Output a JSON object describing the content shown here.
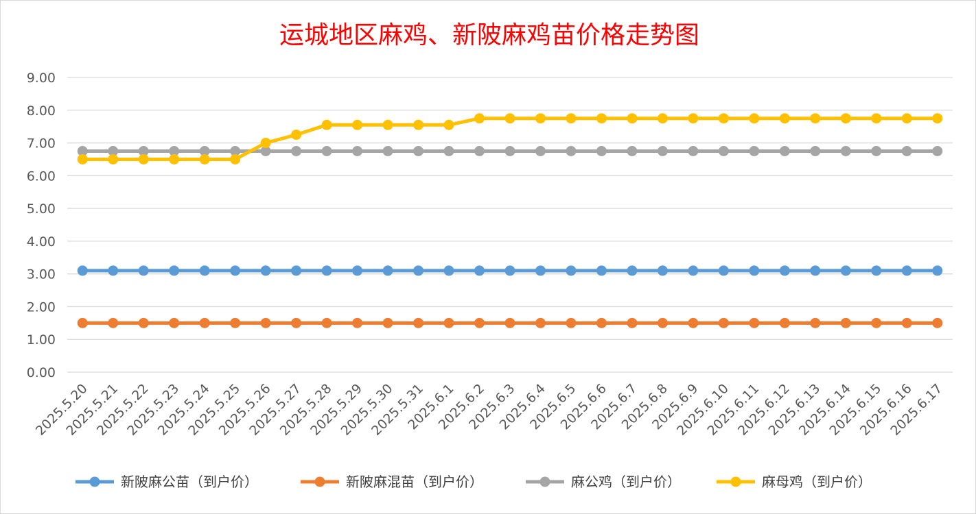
{
  "chart_data": {
    "type": "line",
    "title": "运城地区麻鸡、新陂麻鸡苗价格走势图",
    "xlabel": "",
    "ylabel": "",
    "ylim": [
      0,
      9
    ],
    "yticks": [
      "0.00",
      "1.00",
      "2.00",
      "3.00",
      "4.00",
      "5.00",
      "6.00",
      "7.00",
      "8.00",
      "9.00"
    ],
    "grid": true,
    "legend_position": "bottom",
    "categories": [
      "2025.5.20",
      "2025.5.21",
      "2025.5.22",
      "2025.5.23",
      "2025.5.24",
      "2025.5.25",
      "2025.5.26",
      "2025.5.27",
      "2025.5.28",
      "2025.5.29",
      "2025.5.30",
      "2025.5.31",
      "2025.6.1",
      "2025.6.2",
      "2025.6.3",
      "2025.6.4",
      "2025.6.5",
      "2025.6.6",
      "2025.6.7",
      "2025.6.8",
      "2025.6.9",
      "2025.6.10",
      "2025.6.11",
      "2025.6.12",
      "2025.6.13",
      "2025.6.14",
      "2025.6.15",
      "2025.6.16",
      "2025.6.17"
    ],
    "series": [
      {
        "name": "新陂麻公苗（到户价）",
        "color": "#5b9bd5",
        "values": [
          3.1,
          3.1,
          3.1,
          3.1,
          3.1,
          3.1,
          3.1,
          3.1,
          3.1,
          3.1,
          3.1,
          3.1,
          3.1,
          3.1,
          3.1,
          3.1,
          3.1,
          3.1,
          3.1,
          3.1,
          3.1,
          3.1,
          3.1,
          3.1,
          3.1,
          3.1,
          3.1,
          3.1,
          3.1
        ]
      },
      {
        "name": "新陂麻混苗（到户价）",
        "color": "#ed7d31",
        "values": [
          1.5,
          1.5,
          1.5,
          1.5,
          1.5,
          1.5,
          1.5,
          1.5,
          1.5,
          1.5,
          1.5,
          1.5,
          1.5,
          1.5,
          1.5,
          1.5,
          1.5,
          1.5,
          1.5,
          1.5,
          1.5,
          1.5,
          1.5,
          1.5,
          1.5,
          1.5,
          1.5,
          1.5,
          1.5
        ]
      },
      {
        "name": "麻公鸡（到户价）",
        "color": "#a5a5a5",
        "values": [
          6.75,
          6.75,
          6.75,
          6.75,
          6.75,
          6.75,
          6.75,
          6.75,
          6.75,
          6.75,
          6.75,
          6.75,
          6.75,
          6.75,
          6.75,
          6.75,
          6.75,
          6.75,
          6.75,
          6.75,
          6.75,
          6.75,
          6.75,
          6.75,
          6.75,
          6.75,
          6.75,
          6.75,
          6.75
        ]
      },
      {
        "name": "麻母鸡（到户价）",
        "color": "#ffc000",
        "values": [
          6.5,
          6.5,
          6.5,
          6.5,
          6.5,
          6.5,
          7.0,
          7.25,
          7.55,
          7.55,
          7.55,
          7.55,
          7.55,
          7.75,
          7.75,
          7.75,
          7.75,
          7.75,
          7.75,
          7.75,
          7.75,
          7.75,
          7.75,
          7.75,
          7.75,
          7.75,
          7.75,
          7.75,
          7.75
        ]
      }
    ]
  }
}
